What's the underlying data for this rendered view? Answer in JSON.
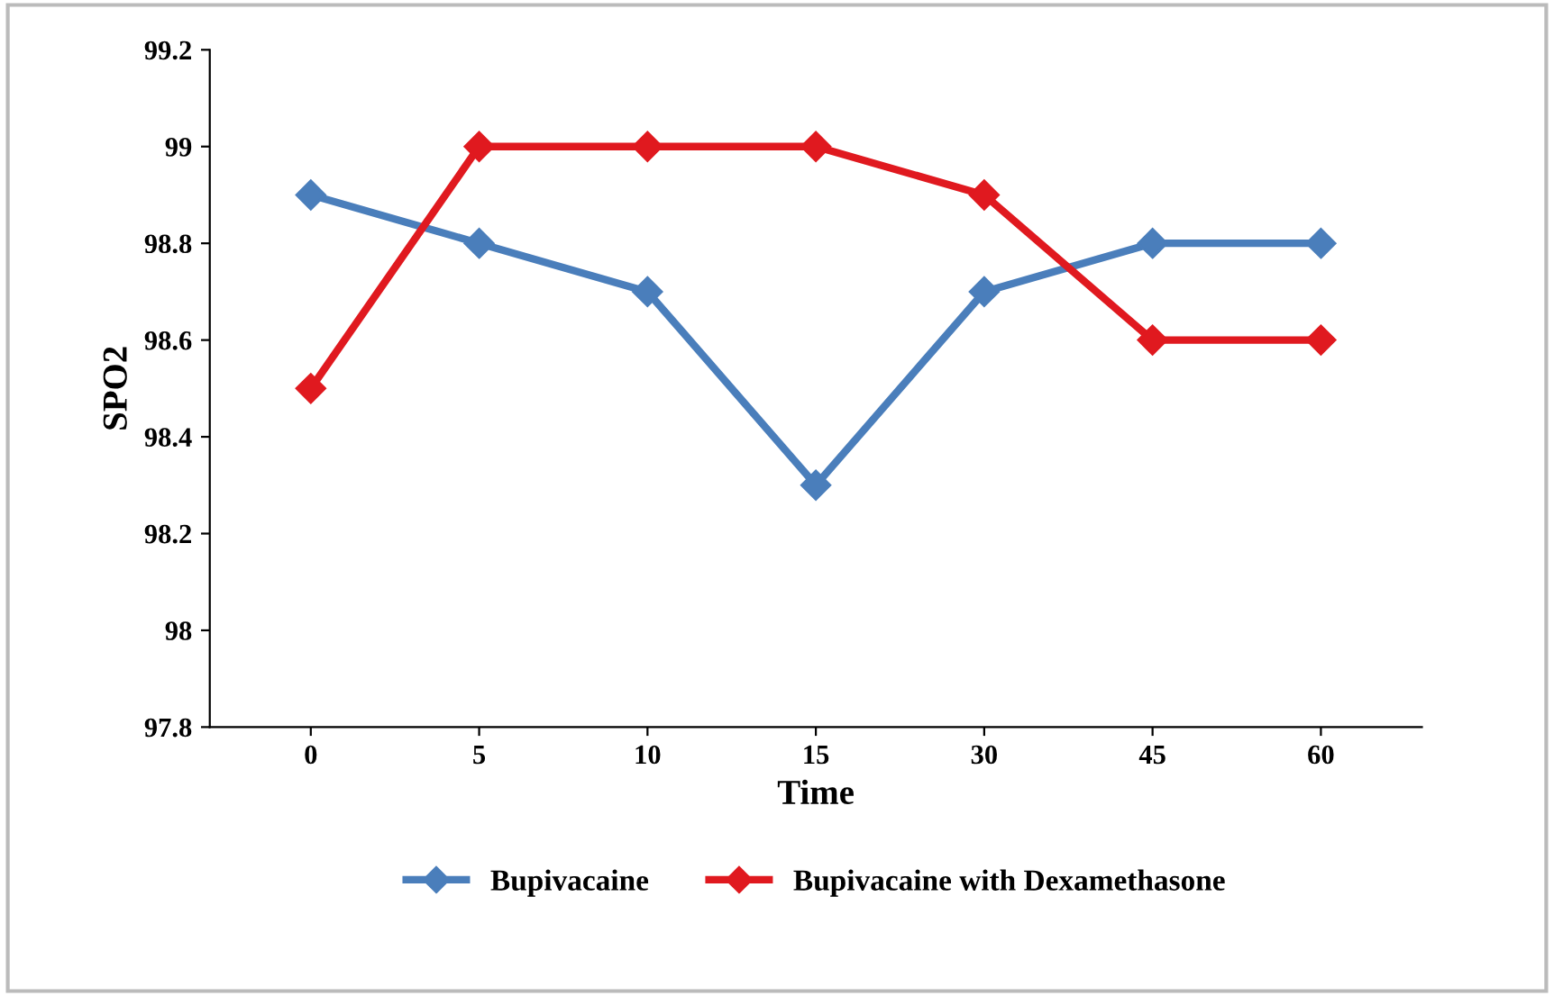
{
  "chart_data": {
    "type": "line",
    "xlabel": "Time",
    "ylabel": "SPO2",
    "categories": [
      "0",
      "5",
      "10",
      "15",
      "30",
      "45",
      "60"
    ],
    "series": [
      {
        "name": "Bupivacaine",
        "color": "#4a7ebb",
        "values": [
          98.9,
          98.8,
          98.7,
          98.3,
          98.7,
          98.8,
          98.8
        ]
      },
      {
        "name": "Bupivacaine with Dexamethasone",
        "color": "#e0191f",
        "values": [
          98.5,
          99,
          99,
          99,
          98.9,
          98.6,
          98.6
        ]
      }
    ],
    "ylim": [
      97.8,
      99.2
    ],
    "yticks": [
      97.8,
      98,
      98.2,
      98.4,
      98.6,
      98.8,
      99,
      99.2
    ],
    "marker": "diamond",
    "line_style": "solid",
    "legend": "bottom",
    "grid": false
  }
}
